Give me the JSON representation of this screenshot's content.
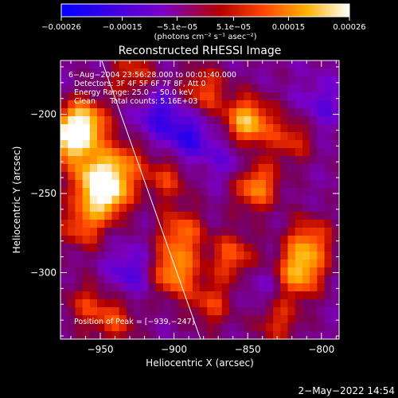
{
  "chart_data": {
    "type": "heatmap",
    "title": "Reconstructed RHESSI Image",
    "xlabel": "Heliocentric X (arcsec)",
    "ylabel": "Heliocentric Y (arcsec)",
    "xlim": [
      -977,
      -788
    ],
    "ylim": [
      -342,
      -166
    ],
    "x_ticks": [
      -950,
      -900,
      -850,
      -800
    ],
    "x_tick_labels": [
      "−950",
      "−900",
      "−850",
      "−800"
    ],
    "y_ticks": [
      -200,
      -250,
      -300
    ],
    "y_tick_labels": [
      "−200",
      "−250",
      "−300"
    ],
    "colorbar": {
      "min": -0.00026,
      "max": 0.00026,
      "tick_labels": [
        "−0.00026",
        "−0.00015",
        "−5.1e−05",
        "5.1e−05",
        "0.00015",
        "0.00026"
      ],
      "tick_values": [
        -0.00026,
        -0.00015,
        -5.1e-05,
        5.1e-05,
        0.00015,
        0.00026
      ],
      "unit_label": "(photons cm⁻² s⁻¹ asec⁻²)",
      "colors": [
        "#0000ff",
        "#7a00c8",
        "#b20000",
        "#ff4400",
        "#ffb000",
        "#ffffff"
      ]
    },
    "annotations": [
      "6−Aug−2004 23:56:28.000 to 00:01:40.000",
      "Detectors: 3F 4F 5F 6F 7F 8F, Att 0",
      "Energy Range: 25.0 − 50.0 keV",
      "Clean      Total counts: 5.16E+03"
    ],
    "peak_label": "Position of Peak = [−939,−247]",
    "peak": [
      -939,
      -247
    ],
    "limb_line": [
      [
        -949,
        -166
      ],
      [
        -882,
        -342
      ]
    ],
    "grid_cols": 38,
    "grid_rows": 35,
    "hotspots": [
      {
        "x": -970,
        "y": -215,
        "v": 0.00026
      },
      {
        "x": -960,
        "y": -205,
        "v": 0.0002
      },
      {
        "x": -945,
        "y": -250,
        "v": 0.00025
      },
      {
        "x": -955,
        "y": -240,
        "v": 0.00018
      },
      {
        "x": -935,
        "y": -230,
        "v": 0.00014
      },
      {
        "x": -962,
        "y": -270,
        "v": 0.00015
      },
      {
        "x": -940,
        "y": -330,
        "v": 0.00012
      },
      {
        "x": -900,
        "y": -300,
        "v": 0.0002
      },
      {
        "x": -895,
        "y": -275,
        "v": 0.00016
      },
      {
        "x": -905,
        "y": -240,
        "v": 0.00012
      },
      {
        "x": -880,
        "y": -185,
        "v": 0.00014
      },
      {
        "x": -850,
        "y": -205,
        "v": 0.00024
      },
      {
        "x": -845,
        "y": -245,
        "v": 0.0002
      },
      {
        "x": -860,
        "y": -290,
        "v": 0.00015
      },
      {
        "x": -830,
        "y": -330,
        "v": 0.00012
      },
      {
        "x": -815,
        "y": -300,
        "v": 0.00022
      },
      {
        "x": -808,
        "y": -280,
        "v": 0.00016
      },
      {
        "x": -820,
        "y": -215,
        "v": 0.00012
      },
      {
        "x": -928,
        "y": -175,
        "v": 0.00012
      },
      {
        "x": -960,
        "y": -320,
        "v": 0.0001
      },
      {
        "x": -875,
        "y": -320,
        "v": 0.00012
      },
      {
        "x": -910,
        "y": -200,
        "v": -0.00012
      },
      {
        "x": -890,
        "y": -215,
        "v": -0.00014
      },
      {
        "x": -930,
        "y": -300,
        "v": -0.0001
      },
      {
        "x": -860,
        "y": -230,
        "v": -8e-05
      },
      {
        "x": -800,
        "y": -195,
        "v": -8e-05
      },
      {
        "x": -840,
        "y": -310,
        "v": -6e-05
      }
    ]
  },
  "footer": {
    "date": "2−May−2022 14:54"
  }
}
